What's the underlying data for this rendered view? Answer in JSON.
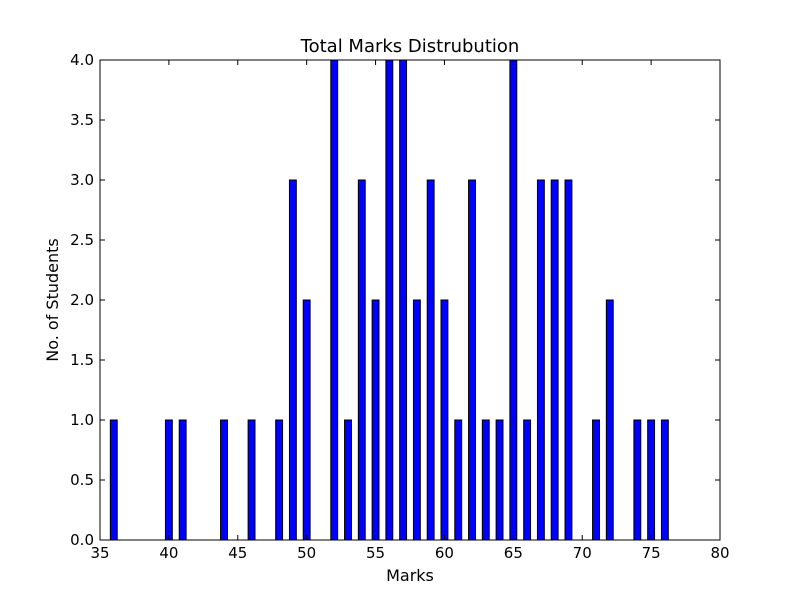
{
  "chart_data": {
    "type": "bar",
    "title": "Total Marks Distrubution",
    "xlabel": "Marks",
    "ylabel": "No. of Students",
    "xlim": [
      35,
      80
    ],
    "ylim": [
      0,
      4
    ],
    "xticks": [
      "35",
      "40",
      "45",
      "50",
      "55",
      "60",
      "65",
      "70",
      "75",
      "80"
    ],
    "yticks": [
      "0.0",
      "0.5",
      "1.0",
      "1.5",
      "2.0",
      "2.5",
      "3.0",
      "3.5",
      "4.0"
    ],
    "grid": false,
    "legend": "none",
    "bar_color": "#0000ff",
    "edge_color": "#000000",
    "x": [
      36,
      40,
      41,
      44,
      46,
      48,
      49,
      50,
      52,
      53,
      54,
      55,
      56,
      57,
      58,
      59,
      60,
      61,
      62,
      63,
      64,
      65,
      66,
      67,
      68,
      69,
      71,
      72,
      74,
      75,
      76
    ],
    "values": [
      1,
      1,
      1,
      1,
      1,
      1,
      3,
      2,
      4,
      1,
      3,
      2,
      4,
      4,
      2,
      3,
      2,
      1,
      3,
      1,
      1,
      4,
      1,
      3,
      3,
      3,
      1,
      2,
      1,
      1,
      1
    ]
  }
}
